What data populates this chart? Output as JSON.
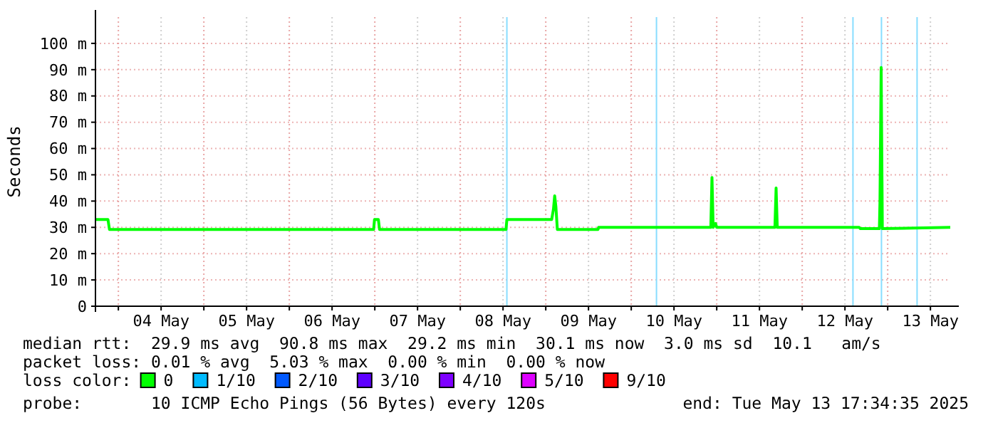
{
  "chart_data": {
    "type": "line",
    "ylabel": "Seconds",
    "xlim": [
      "2025-05-03T17:34",
      "2025-05-13T17:34"
    ],
    "xticks": [
      {
        "value": "2025-05-04T00:00",
        "label": null
      },
      {
        "value": "2025-05-04T12:00",
        "label": "04 May"
      },
      {
        "value": "2025-05-05T00:00",
        "label": null
      },
      {
        "value": "2025-05-05T12:00",
        "label": "05 May"
      },
      {
        "value": "2025-05-06T00:00",
        "label": null
      },
      {
        "value": "2025-05-06T12:00",
        "label": "06 May"
      },
      {
        "value": "2025-05-07T00:00",
        "label": null
      },
      {
        "value": "2025-05-07T12:00",
        "label": "07 May"
      },
      {
        "value": "2025-05-08T00:00",
        "label": null
      },
      {
        "value": "2025-05-08T12:00",
        "label": "08 May"
      },
      {
        "value": "2025-05-09T00:00",
        "label": null
      },
      {
        "value": "2025-05-09T12:00",
        "label": "09 May"
      },
      {
        "value": "2025-05-10T00:00",
        "label": null
      },
      {
        "value": "2025-05-10T12:00",
        "label": "10 May"
      },
      {
        "value": "2025-05-11T00:00",
        "label": null
      },
      {
        "value": "2025-05-11T12:00",
        "label": "11 May"
      },
      {
        "value": "2025-05-12T00:00",
        "label": null
      },
      {
        "value": "2025-05-12T12:00",
        "label": "12 May"
      },
      {
        "value": "2025-05-13T00:00",
        "label": null
      },
      {
        "value": "2025-05-13T12:00",
        "label": "13 May"
      }
    ],
    "ylim": [
      0,
      110
    ],
    "yticks": [
      0,
      {
        "value": 10,
        "label": "10 m"
      },
      {
        "value": 20,
        "label": "20 m"
      },
      {
        "value": 30,
        "label": "30 m"
      },
      {
        "value": 40,
        "label": "40 m"
      },
      {
        "value": 50,
        "label": "50 m"
      },
      {
        "value": 60,
        "label": "60 m"
      },
      {
        "value": 70,
        "label": "70 m"
      },
      {
        "value": 80,
        "label": "80 m"
      },
      {
        "value": 90,
        "label": "90 m"
      },
      {
        "value": 100,
        "label": "100 m"
      }
    ],
    "grid": true,
    "legend": "bottom",
    "legend_title": "loss color:",
    "series": [
      {
        "name": "0",
        "color": "#00ff00",
        "x": [
          "2025-05-03T17:34",
          "2025-05-03T21:05",
          "2025-05-03T21:30",
          "2025-05-06T23:40",
          "2025-05-06T23:55",
          "2025-05-07T01:00",
          "2025-05-07T01:20",
          "2025-05-08T12:50",
          "2025-05-08T13:05",
          "2025-05-09T01:40",
          "2025-05-09T02:10",
          "2025-05-09T02:30",
          "2025-05-09T02:50",
          "2025-05-09T03:15",
          "2025-05-09T14:40",
          "2025-05-09T14:50",
          "2025-05-10T22:20",
          "2025-05-10T22:40",
          "2025-05-10T23:00",
          "2025-05-10T23:40",
          "2025-05-11T00:00",
          "2025-05-11T16:20",
          "2025-05-11T16:40",
          "2025-05-11T17:00",
          "2025-05-12T16:00",
          "2025-05-12T16:20",
          "2025-05-12T21:40",
          "2025-05-12T21:50",
          "2025-05-12T22:10",
          "2025-05-12T22:30",
          "2025-05-13T17:34"
        ],
        "values": [
          33,
          33,
          29.2,
          29.2,
          33,
          33,
          29.2,
          29.2,
          33,
          33,
          37,
          42,
          38,
          29.2,
          29.2,
          30,
          30,
          49,
          30,
          31.5,
          30,
          30,
          45,
          30,
          30,
          29.5,
          29.5,
          40,
          90.8,
          29.5,
          30
        ]
      },
      {
        "name": "1/10",
        "color": "#00bbff"
      },
      {
        "name": "2/10",
        "color": "#0059ff"
      },
      {
        "name": "3/10",
        "color": "#5e00ff"
      },
      {
        "name": "4/10",
        "color": "#7e00ff"
      },
      {
        "name": "5/10",
        "color": "#dd00ff"
      },
      {
        "name": "9/10",
        "color": "#ff0000"
      }
    ],
    "ref_lines": [
      {
        "axis": "x",
        "value": "2025-05-08T13:05",
        "color": "#88ddff"
      },
      {
        "axis": "x",
        "value": "2025-05-10T07:05",
        "color": "#88ddff"
      },
      {
        "axis": "x",
        "value": "2025-05-12T14:15",
        "color": "#88ddff"
      },
      {
        "axis": "x",
        "value": "2025-05-12T22:15",
        "color": "#88ddff"
      },
      {
        "axis": "x",
        "value": "2025-05-13T08:15",
        "color": "#88ddff"
      }
    ],
    "annotations": [
      "median rtt:  29.9 ms avg  90.8 ms max  29.2 ms min  30.1 ms now  3.0 ms sd  10.1   am/s",
      "packet loss: 0.01 % avg  5.03 % max  0.00 % min  0.00 % now",
      "probe:       10 ICMP Echo Pings (56 Bytes) every 120s",
      "end: Tue May 13 17:34:35 2025"
    ]
  }
}
